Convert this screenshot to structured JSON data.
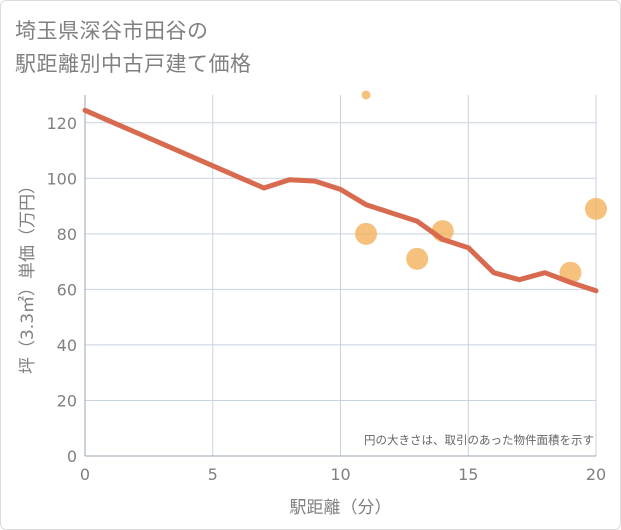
{
  "title_lines": [
    "埼玉県深谷市田谷の",
    "駅距離別中古戸建て価格"
  ],
  "chart_data": {
    "type": "scatter",
    "title": "埼玉県深谷市田谷の駅距離別中古戸建て価格",
    "xlabel": "駅距離（分）",
    "ylabel": "坪（3.3㎡）単価（万円）",
    "xlim": [
      0,
      20
    ],
    "ylim": [
      0,
      130
    ],
    "xticks": [
      0,
      5,
      10,
      15,
      20
    ],
    "yticks": [
      0,
      20,
      40,
      60,
      80,
      100,
      120
    ],
    "grid": true,
    "note": "円の大きさは、取引のあった物件面積を示す",
    "colors": {
      "points": "#f3b15b",
      "line": "#d86a50",
      "grid": "#c9d3e0",
      "text": "#808080"
    },
    "points": [
      {
        "x": 11,
        "y": 130,
        "size": 1
      },
      {
        "x": 11,
        "y": 80,
        "size": 3
      },
      {
        "x": 13,
        "y": 71,
        "size": 3
      },
      {
        "x": 14,
        "y": 81,
        "size": 3
      },
      {
        "x": 19,
        "y": 66,
        "size": 3
      },
      {
        "x": 20,
        "y": 89,
        "size": 3
      }
    ],
    "trend": {
      "name": "trend",
      "x": [
        0,
        1,
        2,
        3,
        4,
        5,
        6,
        7,
        8,
        9,
        10,
        11,
        12,
        13,
        14,
        15,
        16,
        17,
        18,
        19,
        20
      ],
      "y": [
        124.5,
        120.5,
        116.5,
        112.5,
        108.5,
        104.5,
        100.5,
        96.5,
        99.5,
        99,
        96,
        90.5,
        87.5,
        84.5,
        78,
        75,
        66,
        63.5,
        66,
        62.5,
        59.5
      ]
    }
  }
}
